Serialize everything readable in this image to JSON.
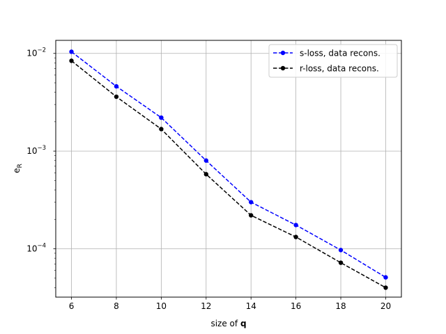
{
  "chart_data": {
    "type": "line",
    "title": "",
    "xlabel_prefix": "size of ",
    "xlabel_symbol": "q",
    "ylabel_main": "e",
    "ylabel_sub": "R",
    "x": [
      6,
      8,
      10,
      12,
      14,
      16,
      18,
      20
    ],
    "xticks": [
      6,
      8,
      10,
      12,
      14,
      16,
      18,
      20
    ],
    "xlim": [
      5.3,
      20.7
    ],
    "yscale": "log",
    "ylim": [
      3.2e-05,
      0.0136
    ],
    "yticks": [
      {
        "value": 0.0001,
        "base": "10",
        "exp": "−4"
      },
      {
        "value": 0.001,
        "base": "10",
        "exp": "−3"
      },
      {
        "value": 0.01,
        "base": "10",
        "exp": "−2"
      }
    ],
    "grid": true,
    "legend_position": "top-right",
    "series": [
      {
        "name": "s-loss, data recons.",
        "color": "#0000ff",
        "linestyle": "dashed",
        "marker": "circle",
        "values": [
          0.0104,
          0.0046,
          0.0022,
          0.0008,
          0.0003,
          0.000175,
          9.7e-05,
          5.1e-05
        ]
      },
      {
        "name": "r-loss, data recons.",
        "color": "#000000",
        "linestyle": "dashed",
        "marker": "circle",
        "values": [
          0.0084,
          0.0036,
          0.00168,
          0.00058,
          0.00022,
          0.000132,
          7.2e-05,
          4e-05
        ]
      }
    ]
  }
}
